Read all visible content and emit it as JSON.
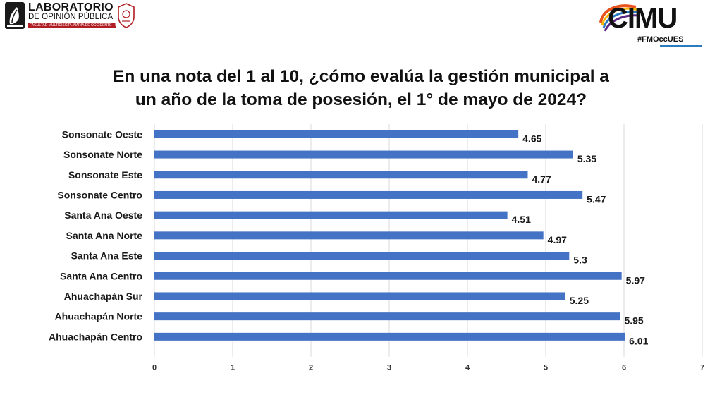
{
  "header": {
    "lab_title": "LABORATORIO",
    "lab_subtitle": "DE OPINIÓN PÚBLICA",
    "lab_band": "FACULTAD MULTIDISCIPLINARIA DE OCCIDENTE - UES",
    "brand_name": "CIMU",
    "brand_tag": "#FMOccUES"
  },
  "chart_data": {
    "type": "bar",
    "orientation": "horizontal",
    "title": "En una nota del 1 al 10, ¿cómo evalúa la gestión municipal a un año de la toma de posesión, el 1° de mayo de 2024?",
    "title_lines": [
      "En una nota del 1 al 10, ¿cómo evalúa la gestión municipal a",
      "un año de la toma de posesión, el 1° de mayo de 2024?"
    ],
    "categories": [
      "Sonsonate Oeste",
      "Sonsonate Norte",
      "Sonsonate Este",
      "Sonsonate Centro",
      "Santa Ana Oeste",
      "Santa Ana Norte",
      "Santa Ana Este",
      "Santa Ana Centro",
      "Ahuachapán Sur",
      "Ahuachapán Norte",
      "Ahuachapán Centro"
    ],
    "values": [
      4.65,
      5.35,
      4.77,
      5.47,
      4.51,
      4.97,
      5.3,
      5.97,
      5.25,
      5.95,
      6.01
    ],
    "value_labels": [
      "4.65",
      "5.35",
      "4.77",
      "5.47",
      "4.51",
      "4.97",
      "5.3",
      "5.97",
      "5.25",
      "5.95",
      "6.01"
    ],
    "xlim": [
      0,
      7
    ],
    "xticks": [
      "0",
      "1",
      "2",
      "3",
      "4",
      "5",
      "6",
      "7"
    ],
    "bar_color": "#4472c4",
    "grid": true,
    "legend": "none"
  }
}
